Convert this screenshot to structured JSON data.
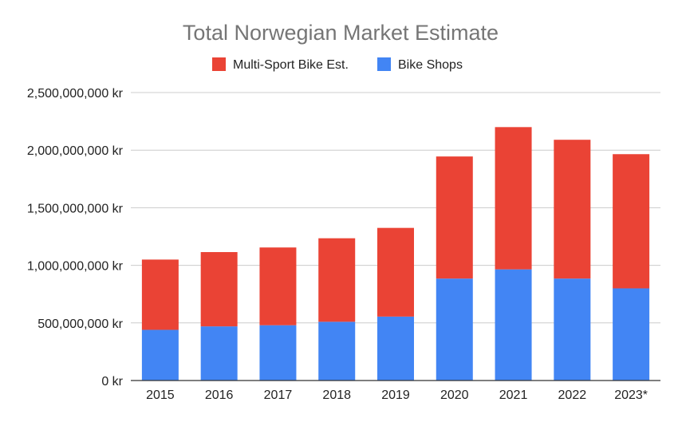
{
  "chart_data": {
    "type": "bar",
    "stacked": true,
    "title": "Total Norwegian Market Estimate",
    "xlabel": "",
    "ylabel": "",
    "categories": [
      "2015",
      "2016",
      "2017",
      "2018",
      "2019",
      "2020",
      "2021",
      "2022",
      "2023*"
    ],
    "series": [
      {
        "name": "Bike Shops",
        "color": "#4285f4",
        "values": [
          440000000,
          470000000,
          480000000,
          510000000,
          555000000,
          885000000,
          965000000,
          885000000,
          800000000
        ]
      },
      {
        "name": "Multi-Sport Bike Est.",
        "color": "#ea4335",
        "values": [
          610000000,
          645000000,
          675000000,
          725000000,
          770000000,
          1060000000,
          1235000000,
          1205000000,
          1165000000
        ]
      }
    ],
    "legend_order": [
      "Multi-Sport Bike Est.",
      "Bike Shops"
    ],
    "legend_position": "top",
    "ylim": [
      0,
      2500000000
    ],
    "yticks": [
      0,
      500000000,
      1000000000,
      1500000000,
      2000000000,
      2500000000
    ],
    "ytick_labels": [
      "0 kr",
      "500,000,000 kr",
      "1,000,000,000 kr",
      "1,500,000,000 kr",
      "2,000,000,000 kr",
      "2,500,000,000 kr"
    ],
    "grid": true,
    "gridline_color": "#cccccc",
    "axis_color": "#333333"
  }
}
